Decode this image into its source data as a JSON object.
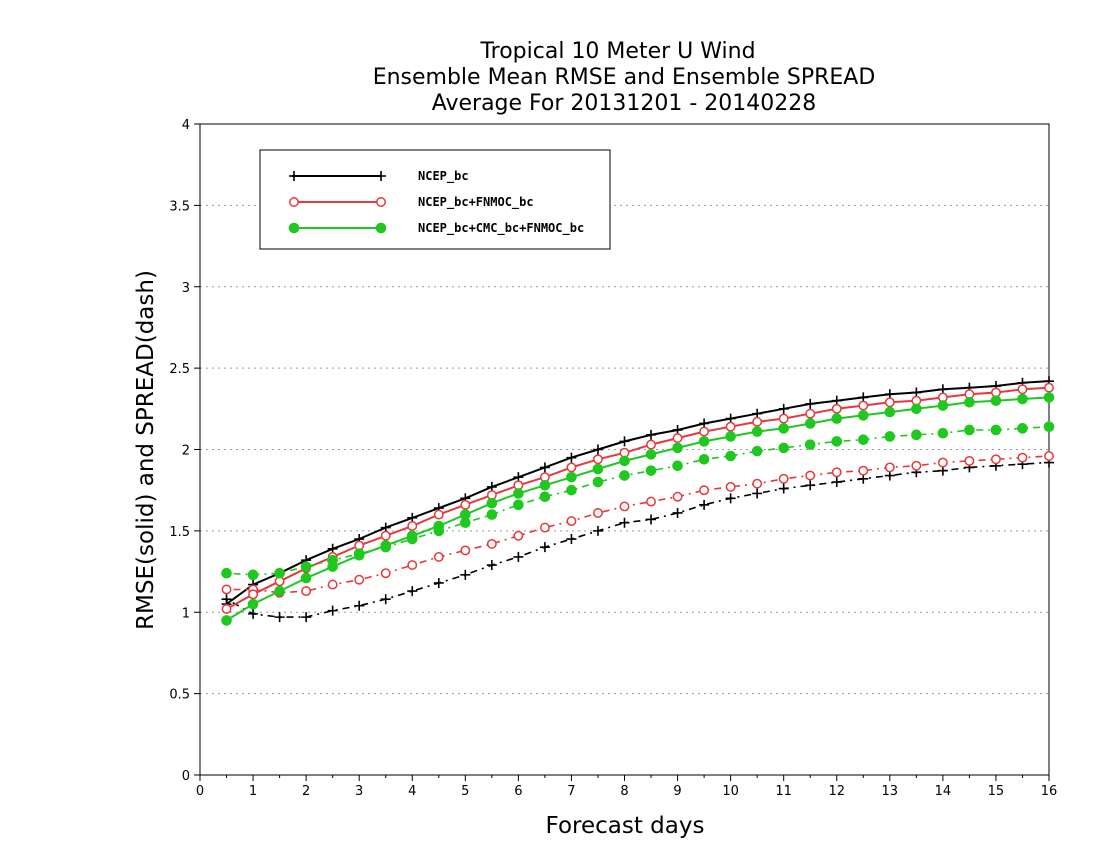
{
  "chart_data": {
    "type": "line",
    "title_lines": [
      "Tropical 10 Meter U Wind",
      "Ensemble Mean RMSE and Ensemble SPREAD",
      "Average For 20131201 - 20140228"
    ],
    "xlabel": "Forecast days",
    "ylabel": "RMSE(solid) and SPREAD(dash)",
    "xlim": [
      0,
      16
    ],
    "ylim": [
      0,
      4
    ],
    "x_ticks": [
      "0",
      "1",
      "2",
      "3",
      "4",
      "5",
      "6",
      "7",
      "8",
      "9",
      "10",
      "11",
      "12",
      "13",
      "14",
      "15",
      "16"
    ],
    "y_ticks": [
      "0",
      "0.5",
      "1",
      "1.5",
      "2",
      "2.5",
      "3",
      "3.5",
      "4"
    ],
    "grid": "horizontal dotted",
    "legend_position": "top-left",
    "x": [
      0.5,
      1,
      1.5,
      2,
      2.5,
      3,
      3.5,
      4,
      4.5,
      5,
      5.5,
      6,
      6.5,
      7,
      7.5,
      8,
      8.5,
      9,
      9.5,
      10,
      10.5,
      11,
      11.5,
      12,
      12.5,
      13,
      13.5,
      14,
      14.5,
      15,
      15.5,
      16
    ],
    "series": [
      {
        "name": "NCEP_bc",
        "color": "#000000",
        "marker": "plus",
        "rmse": [
          1.05,
          1.17,
          1.24,
          1.32,
          1.39,
          1.45,
          1.52,
          1.58,
          1.64,
          1.7,
          1.77,
          1.83,
          1.89,
          1.95,
          2.0,
          2.05,
          2.09,
          2.12,
          2.16,
          2.19,
          2.22,
          2.25,
          2.28,
          2.3,
          2.32,
          2.34,
          2.35,
          2.37,
          2.38,
          2.39,
          2.41,
          2.42
        ],
        "spread": [
          1.08,
          0.99,
          0.97,
          0.97,
          1.01,
          1.04,
          1.08,
          1.13,
          1.18,
          1.23,
          1.29,
          1.34,
          1.4,
          1.45,
          1.5,
          1.55,
          1.57,
          1.61,
          1.66,
          1.7,
          1.73,
          1.76,
          1.78,
          1.8,
          1.82,
          1.84,
          1.86,
          1.87,
          1.89,
          1.9,
          1.91,
          1.92
        ]
      },
      {
        "name": "NCEP_bc+FNMOC_bc",
        "color": "#e8383b",
        "marker": "open-circle",
        "rmse": [
          1.02,
          1.11,
          1.19,
          1.27,
          1.34,
          1.41,
          1.47,
          1.53,
          1.6,
          1.66,
          1.72,
          1.78,
          1.83,
          1.89,
          1.94,
          1.98,
          2.03,
          2.07,
          2.11,
          2.14,
          2.17,
          2.19,
          2.22,
          2.25,
          2.27,
          2.29,
          2.3,
          2.32,
          2.34,
          2.35,
          2.37,
          2.38
        ],
        "spread": [
          1.14,
          1.14,
          1.12,
          1.13,
          1.17,
          1.2,
          1.24,
          1.29,
          1.34,
          1.38,
          1.42,
          1.47,
          1.52,
          1.56,
          1.61,
          1.65,
          1.68,
          1.71,
          1.75,
          1.77,
          1.79,
          1.82,
          1.84,
          1.86,
          1.87,
          1.89,
          1.9,
          1.92,
          1.93,
          1.94,
          1.95,
          1.96
        ]
      },
      {
        "name": "NCEP_bc+CMC_bc+FNMOC_bc",
        "color": "#1ec81e",
        "marker": "filled-circle",
        "rmse": [
          0.95,
          1.05,
          1.13,
          1.21,
          1.28,
          1.35,
          1.41,
          1.47,
          1.53,
          1.6,
          1.67,
          1.73,
          1.78,
          1.83,
          1.88,
          1.93,
          1.97,
          2.01,
          2.05,
          2.08,
          2.11,
          2.13,
          2.16,
          2.19,
          2.21,
          2.23,
          2.25,
          2.27,
          2.29,
          2.3,
          2.31,
          2.32
        ],
        "spread": [
          1.24,
          1.23,
          1.24,
          1.28,
          1.32,
          1.36,
          1.4,
          1.45,
          1.5,
          1.55,
          1.6,
          1.66,
          1.71,
          1.75,
          1.8,
          1.84,
          1.87,
          1.9,
          1.94,
          1.96,
          1.99,
          2.01,
          2.03,
          2.05,
          2.06,
          2.08,
          2.09,
          2.1,
          2.12,
          2.12,
          2.13,
          2.14
        ]
      }
    ]
  }
}
